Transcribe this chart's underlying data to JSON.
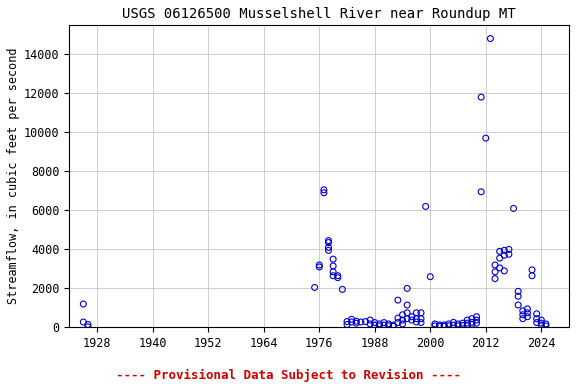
{
  "title": "USGS 06126500 Musselshell River near Roundup MT",
  "ylabel": "Streamflow, in cubic feet per second",
  "footnote": "---- Provisional Data Subject to Revision ----",
  "xlim": [
    1922,
    2030
  ],
  "ylim": [
    0,
    15500
  ],
  "xticks": [
    1928,
    1940,
    1952,
    1964,
    1976,
    1988,
    2000,
    2012,
    2024
  ],
  "yticks": [
    0,
    2000,
    4000,
    6000,
    8000,
    10000,
    12000,
    14000
  ],
  "marker_color": "#0000cc",
  "marker_size": 18,
  "marker_lw": 0.8,
  "data_points": [
    [
      1925,
      1200
    ],
    [
      1925,
      280
    ],
    [
      1926,
      150
    ],
    [
      1926,
      30
    ],
    [
      1975,
      2050
    ],
    [
      1976,
      3100
    ],
    [
      1976,
      3200
    ],
    [
      1977,
      7050
    ],
    [
      1977,
      6900
    ],
    [
      1978,
      4450
    ],
    [
      1978,
      4350
    ],
    [
      1978,
      4100
    ],
    [
      1978,
      3950
    ],
    [
      1979,
      3500
    ],
    [
      1979,
      3150
    ],
    [
      1979,
      2850
    ],
    [
      1979,
      2650
    ],
    [
      1980,
      2650
    ],
    [
      1980,
      2550
    ],
    [
      1981,
      1950
    ],
    [
      1982,
      300
    ],
    [
      1982,
      150
    ],
    [
      1983,
      420
    ],
    [
      1983,
      280
    ],
    [
      1984,
      320
    ],
    [
      1984,
      220
    ],
    [
      1985,
      280
    ],
    [
      1986,
      300
    ],
    [
      1987,
      380
    ],
    [
      1987,
      180
    ],
    [
      1988,
      250
    ],
    [
      1988,
      120
    ],
    [
      1989,
      180
    ],
    [
      1989,
      80
    ],
    [
      1990,
      250
    ],
    [
      1990,
      120
    ],
    [
      1991,
      180
    ],
    [
      1991,
      90
    ],
    [
      1992,
      120
    ],
    [
      1992,
      60
    ],
    [
      1993,
      1400
    ],
    [
      1993,
      480
    ],
    [
      1993,
      250
    ],
    [
      1994,
      650
    ],
    [
      1994,
      380
    ],
    [
      1994,
      180
    ],
    [
      1995,
      2000
    ],
    [
      1995,
      1150
    ],
    [
      1995,
      750
    ],
    [
      1995,
      450
    ],
    [
      1996,
      550
    ],
    [
      1996,
      380
    ],
    [
      1997,
      750
    ],
    [
      1997,
      450
    ],
    [
      1997,
      280
    ],
    [
      1998,
      750
    ],
    [
      1998,
      450
    ],
    [
      1998,
      250
    ],
    [
      1999,
      6200
    ],
    [
      2000,
      2600
    ],
    [
      2001,
      180
    ],
    [
      2001,
      80
    ],
    [
      2002,
      130
    ],
    [
      2002,
      60
    ],
    [
      2003,
      130
    ],
    [
      2003,
      60
    ],
    [
      2004,
      180
    ],
    [
      2004,
      80
    ],
    [
      2005,
      260
    ],
    [
      2005,
      120
    ],
    [
      2006,
      180
    ],
    [
      2006,
      80
    ],
    [
      2007,
      220
    ],
    [
      2007,
      100
    ],
    [
      2008,
      380
    ],
    [
      2008,
      220
    ],
    [
      2008,
      120
    ],
    [
      2009,
      450
    ],
    [
      2009,
      260
    ],
    [
      2009,
      160
    ],
    [
      2010,
      550
    ],
    [
      2010,
      380
    ],
    [
      2010,
      220
    ],
    [
      2011,
      11800
    ],
    [
      2011,
      6950
    ],
    [
      2012,
      9700
    ],
    [
      2013,
      14800
    ],
    [
      2014,
      3200
    ],
    [
      2014,
      2850
    ],
    [
      2014,
      2500
    ],
    [
      2015,
      3900
    ],
    [
      2015,
      3550
    ],
    [
      2015,
      3050
    ],
    [
      2016,
      3950
    ],
    [
      2016,
      3700
    ],
    [
      2016,
      2900
    ],
    [
      2017,
      4000
    ],
    [
      2017,
      3750
    ],
    [
      2018,
      6100
    ],
    [
      2019,
      1850
    ],
    [
      2019,
      1600
    ],
    [
      2019,
      1150
    ],
    [
      2020,
      850
    ],
    [
      2020,
      650
    ],
    [
      2020,
      450
    ],
    [
      2021,
      950
    ],
    [
      2021,
      750
    ],
    [
      2021,
      550
    ],
    [
      2022,
      2950
    ],
    [
      2022,
      2650
    ],
    [
      2023,
      700
    ],
    [
      2023,
      450
    ],
    [
      2023,
      250
    ],
    [
      2024,
      380
    ],
    [
      2024,
      220
    ],
    [
      2024,
      120
    ],
    [
      2025,
      180
    ],
    [
      2025,
      80
    ]
  ],
  "background_color": "#ffffff",
  "grid_color": "#bbbbbb",
  "title_fontsize": 10,
  "axis_fontsize": 8.5,
  "tick_fontsize": 8.5,
  "footnote_color": "#cc0000",
  "footnote_fontsize": 9
}
